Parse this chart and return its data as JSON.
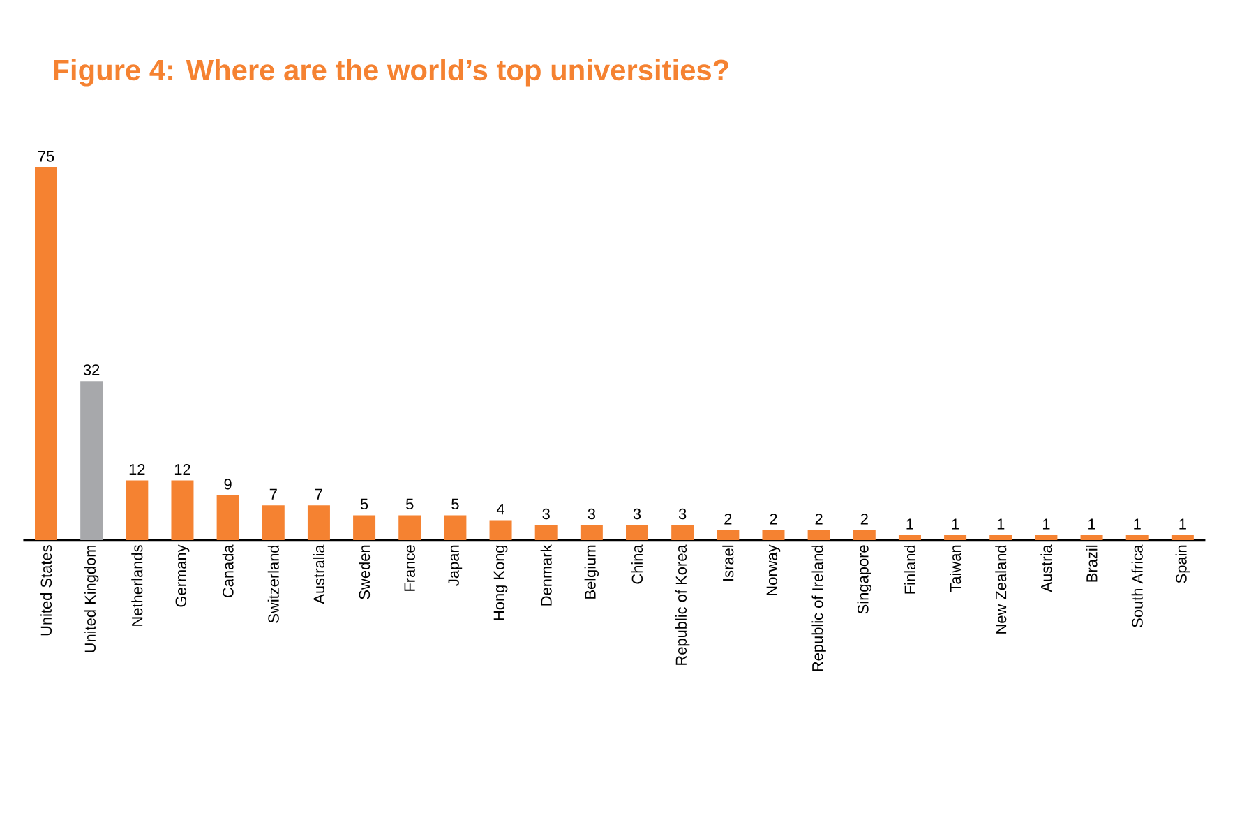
{
  "chart_data": {
    "type": "bar",
    "title": "Figure 4: Where are the world’s top universities?",
    "categories": [
      "United States",
      "United Kingdom",
      "Netherlands",
      "Germany",
      "Canada",
      "Switzerland",
      "Australia",
      "Sweden",
      "France",
      "Japan",
      "Hong Kong",
      "Denmark",
      "Belgium",
      "China",
      "Republic of Korea",
      "Israel",
      "Norway",
      "Republic of Ireland",
      "Singapore",
      "Finland",
      "Taiwan",
      "New Zealand",
      "Austria",
      "Brazil",
      "South Africa",
      "Spain"
    ],
    "values": [
      75,
      32,
      12,
      12,
      9,
      7,
      7,
      5,
      5,
      5,
      4,
      3,
      3,
      3,
      3,
      2,
      2,
      2,
      2,
      1,
      1,
      1,
      1,
      1,
      1,
      1
    ],
    "colors": [
      "#f58231",
      "#a7a8ab",
      "#f58231",
      "#f58231",
      "#f58231",
      "#f58231",
      "#f58231",
      "#f58231",
      "#f58231",
      "#f58231",
      "#f58231",
      "#f58231",
      "#f58231",
      "#f58231",
      "#f58231",
      "#f58231",
      "#f58231",
      "#f58231",
      "#f58231",
      "#f58231",
      "#f58231",
      "#f58231",
      "#f58231",
      "#f58231",
      "#f58231",
      "#f58231"
    ],
    "data_labels": true
  }
}
